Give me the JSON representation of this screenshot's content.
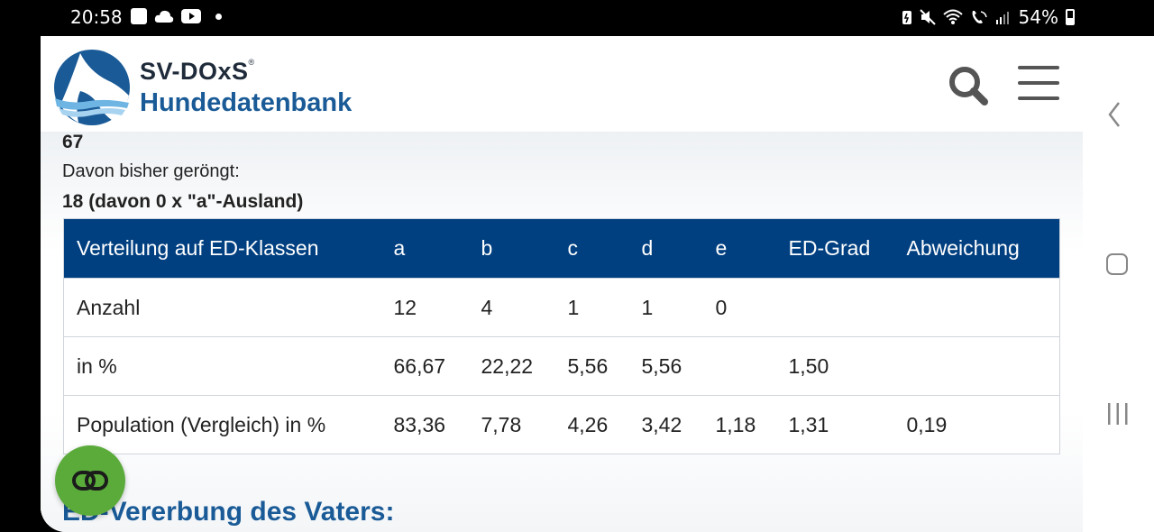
{
  "status_bar": {
    "time": "20:58",
    "battery": "54%",
    "left_icons": [
      "image-icon",
      "cloud-icon",
      "youtube-icon",
      "dot-icon"
    ],
    "right_icons": [
      "battery-saver-icon",
      "mute-icon",
      "wifi-icon",
      "wifi-calling-icon",
      "signal-icon",
      "battery-icon"
    ]
  },
  "header": {
    "brand_top": "SV-DOxS",
    "brand_reg": "®",
    "brand_bottom": "Hundedatenbank"
  },
  "content": {
    "count_value": "67",
    "graded_label": "Davon bisher geröngt:",
    "graded_value": "18 (davon 0 x \"a\"-Ausland)"
  },
  "table": {
    "headers": [
      "Verteilung auf ED-Klassen",
      "a",
      "b",
      "c",
      "d",
      "e",
      "ED-Grad",
      "Abweichung"
    ],
    "rows": [
      [
        "Anzahl",
        "12",
        "4",
        "1",
        "1",
        "0",
        "",
        ""
      ],
      [
        "in %",
        "66,67",
        "22,22",
        "5,56",
        "5,56",
        "",
        "1,50",
        ""
      ],
      [
        "Population (Vergleich) in %",
        "83,36",
        "7,78",
        "4,26",
        "3,42",
        "1,18",
        "1,31",
        "0,19"
      ]
    ]
  },
  "section_title": "ED-Vererbung des Vaters:",
  "colors": {
    "table_header": "#003f80",
    "brand_blue": "#1a5b97",
    "fab_green": "#5aab3a"
  }
}
